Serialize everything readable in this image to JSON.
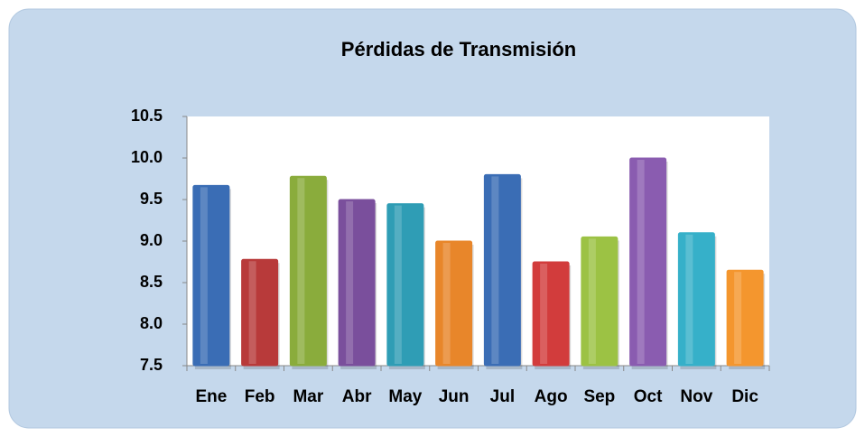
{
  "chart_data": {
    "type": "bar",
    "title": "Pérdidas de Transmisión",
    "categories": [
      "Ene",
      "Feb",
      "Mar",
      "Abr",
      "May",
      "Jun",
      "Jul",
      "Ago",
      "Sep",
      "Oct",
      "Nov",
      "Dic"
    ],
    "values": [
      9.67,
      8.78,
      9.78,
      9.5,
      9.45,
      9.0,
      9.8,
      8.75,
      9.05,
      10.0,
      9.1,
      8.65
    ],
    "colors": [
      "#3a6db5",
      "#b83a3a",
      "#8aac3c",
      "#7a4f9c",
      "#2f9db5",
      "#e8862a",
      "#3a6db5",
      "#d23c3c",
      "#9cc244",
      "#8a5cb0",
      "#36b0c9",
      "#f4962e"
    ],
    "ylim": [
      7.5,
      10.5
    ],
    "yticks": [
      7.5,
      {
        "value": 8,
        "label": "8.0"
      },
      8.5,
      {
        "value": 9,
        "label": "9.0"
      },
      9.5,
      {
        "value": 10,
        "label": "10.0"
      },
      10.5
    ]
  }
}
